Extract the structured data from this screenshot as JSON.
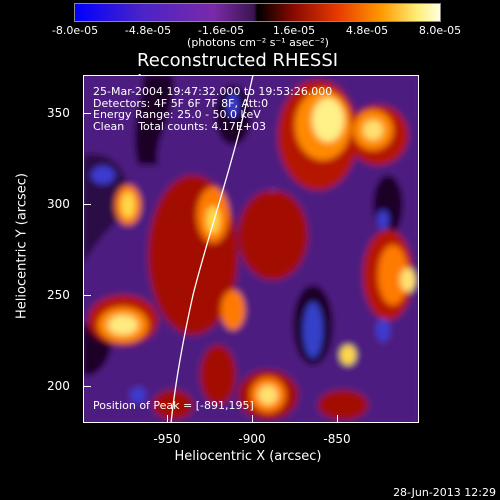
{
  "colorbar": {
    "ticks": [
      "-8.0e-05",
      "-4.8e-05",
      "-1.6e-05",
      "1.6e-05",
      "4.8e-05",
      "8.0e-05"
    ],
    "units": "(photons cm⁻² s⁻¹ asec⁻²)"
  },
  "title": "Reconstructed RHESSI Image",
  "info": {
    "time": "25-Mar-2004 19:47:32.000 to 19:53:26.000",
    "detectors": "Detectors: 4F 5F 6F 7F 8F, Att:0",
    "energy": "Energy Range: 25.0 - 50.0 keV",
    "clean": "Clean    Total counts: 4.17E+03"
  },
  "peak": "Position of Peak = [-891,195]",
  "axes": {
    "xlabel": "Heliocentric X (arcsec)",
    "ylabel": "Heliocentric Y (arcsec)",
    "xticks": [
      "-950",
      "-900",
      "-850"
    ],
    "yticks": [
      "350",
      "300",
      "250",
      "200"
    ]
  },
  "datestamp": "28-Jun-2013 12:29",
  "colors": {
    "background": "#000000",
    "limb": "#ffffff"
  }
}
